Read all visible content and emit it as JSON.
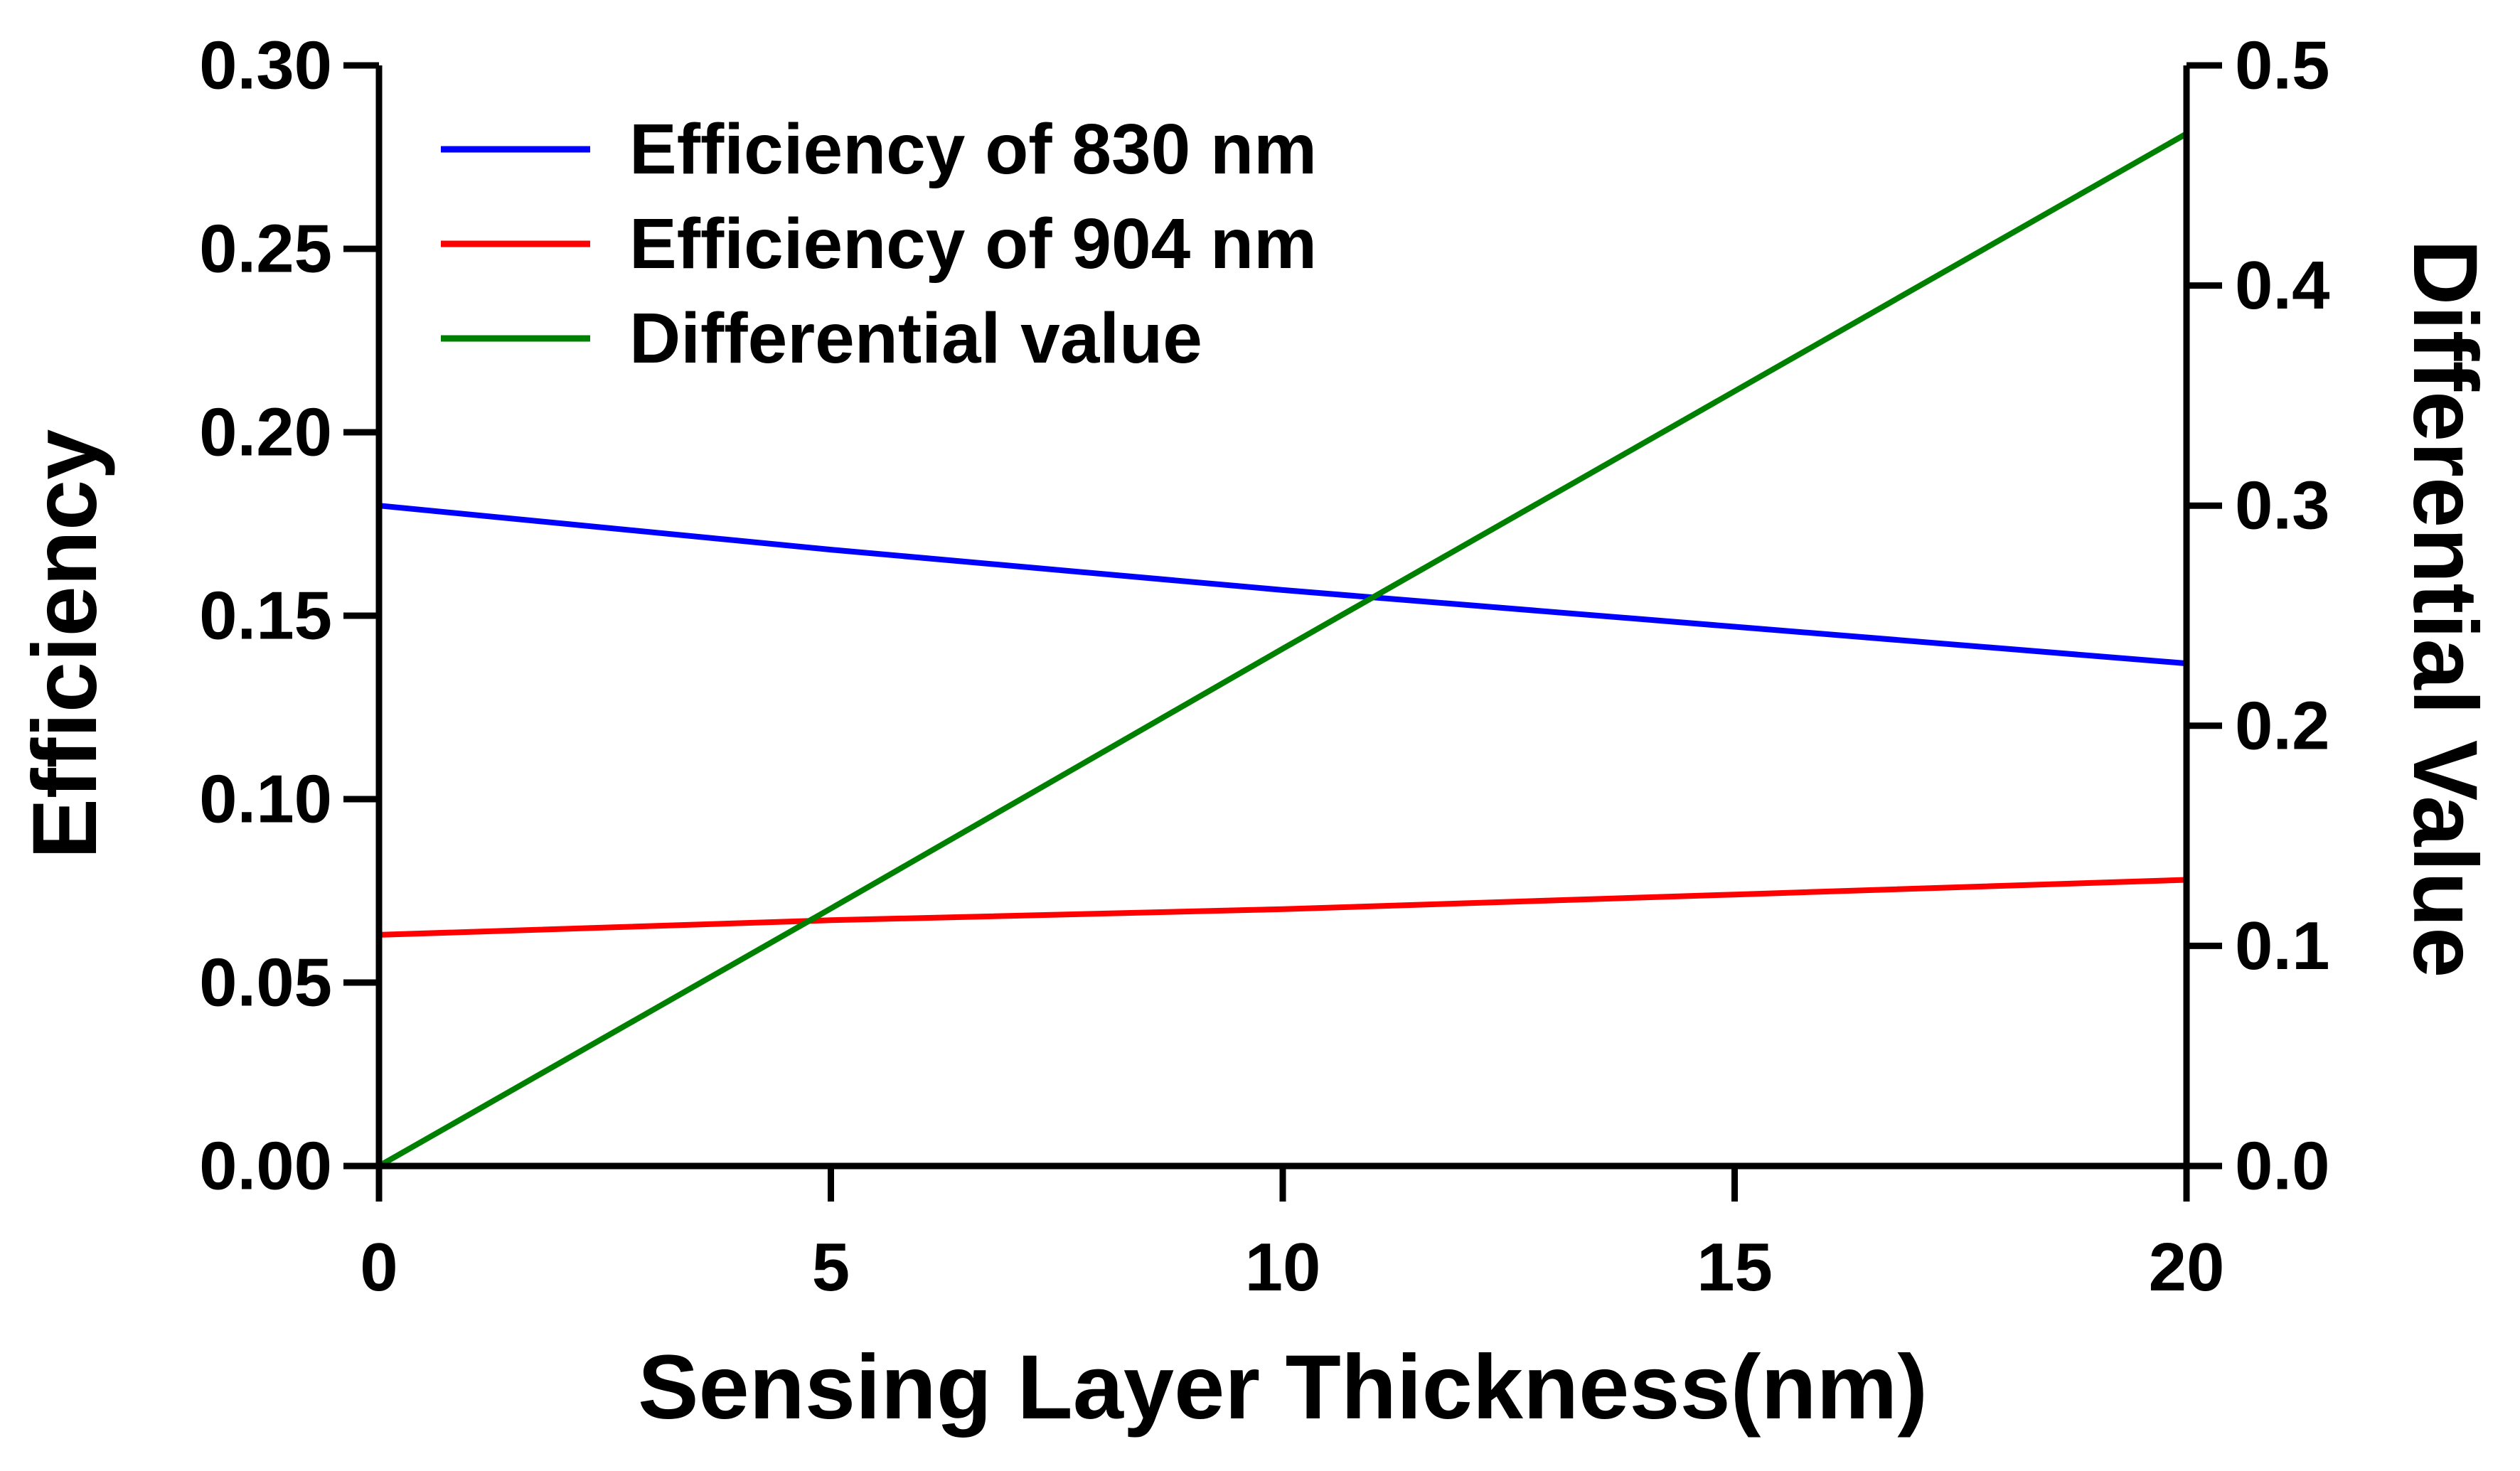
{
  "chart_data": {
    "type": "line",
    "xlabel": "Sensing Layer Thickness(nm)",
    "ylabel_left": "Efficiency",
    "ylabel_right": "Differential Value",
    "xlim": [
      0,
      20
    ],
    "ylim_left": [
      0,
      0.3
    ],
    "ylim_right": [
      0,
      0.5
    ],
    "x_ticks": [
      "0",
      "5",
      "10",
      "15",
      "20"
    ],
    "y_left_ticks": [
      "0.00",
      "0.05",
      "0.10",
      "0.15",
      "0.20",
      "0.25",
      "0.30"
    ],
    "y_right_ticks": [
      "0.0",
      "0.1",
      "0.2",
      "0.3",
      "0.4",
      "0.5"
    ],
    "grid": false,
    "legend_position": "top-left",
    "series": [
      {
        "name": "Efficiency of 830 nm",
        "color": "#0000ff",
        "axis": "left",
        "x": [
          0,
          5,
          10,
          15,
          20
        ],
        "values": [
          0.18,
          0.168,
          0.157,
          0.147,
          0.137
        ]
      },
      {
        "name": "Efficiency of 904 nm",
        "color": "#ff0000",
        "axis": "left",
        "x": [
          0,
          5,
          10,
          15,
          20
        ],
        "values": [
          0.063,
          0.067,
          0.07,
          0.074,
          0.078
        ]
      },
      {
        "name": "Differential value",
        "color": "#008000",
        "axis": "right",
        "x": [
          0,
          5,
          10,
          15,
          20
        ],
        "values": [
          0.0,
          0.117,
          0.235,
          0.352,
          0.469
        ]
      }
    ]
  }
}
